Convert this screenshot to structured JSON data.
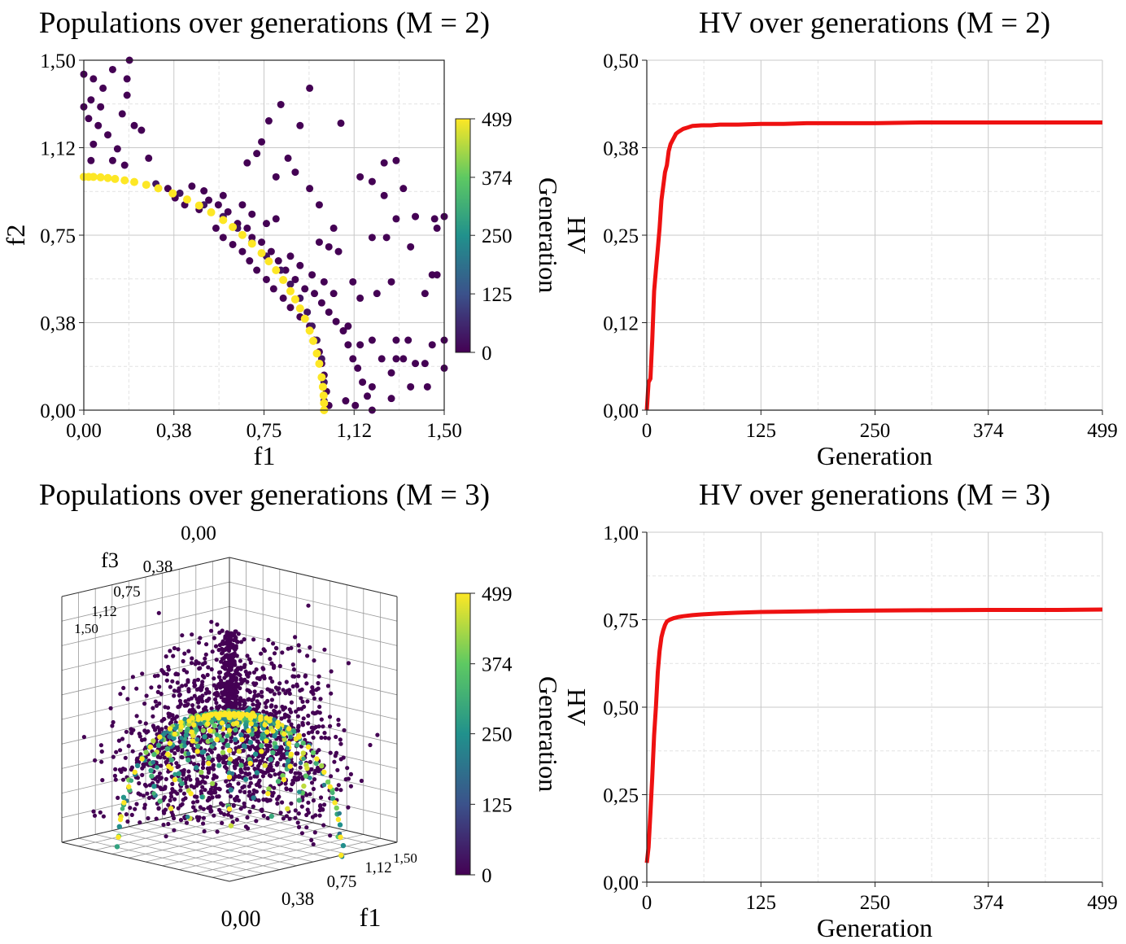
{
  "colormap": {
    "name": "viridis",
    "stops": [
      "#440154",
      "#3b528b",
      "#21918c",
      "#5ec962",
      "#fde725"
    ]
  },
  "hv_line_color": "#ee1111",
  "chart_data": [
    {
      "id": "pop2",
      "type": "scatter",
      "title": "Populations over generations (M = 2)",
      "xlabel": "f1",
      "ylabel": "f2",
      "xlim": [
        0,
        1.5
      ],
      "ylim": [
        0,
        1.5
      ],
      "xticks": [
        0,
        0.375,
        0.75,
        1.125,
        1.5
      ],
      "yticks": [
        0,
        0.375,
        0.75,
        1.125,
        1.5
      ],
      "tick_labels": [
        "0,00",
        "0,38",
        "0,75",
        "1,12",
        "1,50"
      ],
      "grid": true,
      "colorbar": {
        "label": "Generation",
        "ticks": [
          0,
          125,
          250,
          374,
          499
        ],
        "range": [
          0,
          499
        ]
      },
      "series": [
        {
          "generation": 0,
          "points": [
            [
              0.0,
              1.44
            ],
            [
              0.04,
              1.42
            ],
            [
              0.03,
              1.33
            ],
            [
              0.08,
              1.38
            ],
            [
              0.12,
              1.46
            ],
            [
              0.19,
              1.5
            ],
            [
              0.18,
              1.42
            ],
            [
              0.18,
              1.35
            ],
            [
              0.02,
              1.25
            ],
            [
              0.06,
              1.22
            ],
            [
              0.1,
              1.18
            ],
            [
              0.14,
              1.12
            ],
            [
              0.04,
              1.14
            ],
            [
              0.0,
              1.3
            ],
            [
              0.07,
              1.3
            ],
            [
              0.16,
              1.27
            ],
            [
              0.21,
              1.22
            ],
            [
              0.17,
              1.05
            ],
            [
              0.12,
              1.07
            ],
            [
              0.03,
              1.07
            ],
            [
              0.24,
              1.2
            ],
            [
              0.27,
              1.08
            ],
            [
              0.35,
              0.95
            ],
            [
              0.38,
              0.91
            ],
            [
              0.42,
              0.88
            ],
            [
              0.48,
              0.86
            ],
            [
              0.55,
              0.78
            ],
            [
              0.58,
              0.74
            ],
            [
              0.62,
              0.71
            ],
            [
              0.66,
              0.68
            ],
            [
              0.69,
              0.64
            ],
            [
              0.72,
              0.6
            ],
            [
              0.76,
              0.56
            ],
            [
              0.79,
              0.52
            ],
            [
              0.83,
              0.48
            ],
            [
              0.86,
              0.44
            ],
            [
              0.9,
              0.4
            ],
            [
              0.94,
              0.36
            ],
            [
              0.96,
              0.3
            ],
            [
              0.98,
              0.25
            ],
            [
              0.99,
              0.2
            ],
            [
              1.0,
              0.15
            ],
            [
              1.01,
              0.08
            ],
            [
              1.02,
              0.02
            ],
            [
              0.52,
              0.9
            ],
            [
              0.56,
              0.88
            ],
            [
              0.6,
              0.85
            ],
            [
              0.64,
              0.8
            ],
            [
              0.68,
              0.78
            ],
            [
              0.7,
              0.74
            ],
            [
              0.74,
              0.72
            ],
            [
              0.78,
              0.68
            ],
            [
              0.81,
              0.64
            ],
            [
              0.84,
              0.6
            ],
            [
              0.88,
              0.56
            ],
            [
              0.92,
              0.52
            ],
            [
              0.96,
              0.5
            ],
            [
              0.99,
              0.46
            ],
            [
              1.02,
              0.42
            ],
            [
              1.05,
              0.38
            ],
            [
              1.08,
              0.34
            ],
            [
              1.1,
              0.28
            ],
            [
              1.12,
              0.22
            ],
            [
              1.14,
              0.18
            ],
            [
              1.16,
              0.12
            ],
            [
              1.18,
              0.06
            ],
            [
              1.09,
              0.04
            ],
            [
              1.13,
              0.02
            ],
            [
              1.2,
              0.0
            ],
            [
              0.68,
              1.06
            ],
            [
              0.72,
              1.1
            ],
            [
              0.74,
              1.15
            ],
            [
              0.77,
              1.24
            ],
            [
              0.82,
              1.31
            ],
            [
              0.9,
              1.22
            ],
            [
              0.94,
              1.38
            ],
            [
              0.85,
              1.08
            ],
            [
              0.8,
              1.0
            ],
            [
              0.88,
              1.02
            ],
            [
              0.94,
              0.95
            ],
            [
              0.98,
              0.88
            ],
            [
              1.04,
              0.78
            ],
            [
              1.06,
              0.68
            ],
            [
              1.02,
              0.7
            ],
            [
              0.98,
              0.72
            ],
            [
              1.07,
              1.23
            ],
            [
              1.15,
              1.0
            ],
            [
              1.2,
              0.98
            ],
            [
              1.25,
              1.06
            ],
            [
              1.3,
              1.07
            ],
            [
              1.33,
              0.95
            ],
            [
              1.3,
              0.82
            ],
            [
              1.25,
              0.92
            ],
            [
              1.2,
              0.74
            ],
            [
              1.26,
              0.74
            ],
            [
              1.36,
              0.7
            ],
            [
              1.38,
              0.83
            ],
            [
              1.46,
              0.82
            ],
            [
              1.47,
              0.78
            ],
            [
              1.5,
              0.83
            ],
            [
              1.45,
              0.58
            ],
            [
              1.42,
              0.5
            ],
            [
              1.47,
              0.58
            ],
            [
              1.28,
              0.55
            ],
            [
              1.22,
              0.5
            ],
            [
              1.15,
              0.48
            ],
            [
              1.12,
              0.55
            ],
            [
              1.2,
              0.3
            ],
            [
              1.24,
              0.22
            ],
            [
              1.28,
              0.16
            ],
            [
              1.3,
              0.22
            ],
            [
              1.33,
              0.22
            ],
            [
              1.35,
              0.3
            ],
            [
              1.3,
              0.3
            ],
            [
              1.38,
              0.2
            ],
            [
              1.42,
              0.2
            ],
            [
              1.45,
              0.28
            ],
            [
              1.5,
              0.3
            ],
            [
              1.5,
              0.18
            ],
            [
              1.43,
              0.1
            ],
            [
              1.36,
              0.1
            ],
            [
              1.28,
              0.05
            ],
            [
              1.2,
              0.1
            ],
            [
              1.15,
              0.28
            ],
            [
              1.1,
              0.36
            ],
            [
              1.04,
              0.5
            ],
            [
              1.0,
              0.55
            ],
            [
              0.95,
              0.58
            ],
            [
              0.9,
              0.62
            ],
            [
              0.86,
              0.66
            ],
            [
              0.8,
              0.82
            ],
            [
              0.76,
              0.8
            ],
            [
              0.7,
              0.84
            ],
            [
              0.66,
              0.88
            ],
            [
              0.58,
              0.92
            ],
            [
              0.5,
              0.94
            ],
            [
              0.45,
              0.96
            ]
          ]
        },
        {
          "generation": 30,
          "points": [
            [
              0.3,
              0.97
            ],
            [
              0.4,
              0.93
            ],
            [
              0.5,
              0.88
            ],
            [
              0.58,
              0.83
            ],
            [
              0.64,
              0.78
            ],
            [
              0.7,
              0.72
            ],
            [
              0.76,
              0.66
            ],
            [
              0.82,
              0.6
            ],
            [
              0.86,
              0.54
            ],
            [
              0.9,
              0.48
            ],
            [
              0.93,
              0.42
            ],
            [
              0.95,
              0.36
            ],
            [
              0.97,
              0.3
            ],
            [
              0.99,
              0.22
            ],
            [
              1.0,
              0.12
            ],
            [
              1.0,
              0.04
            ]
          ]
        },
        {
          "generation": 499,
          "points": [
            [
              0.0,
              1.0
            ],
            [
              0.02,
              1.0
            ],
            [
              0.04,
              1.0
            ],
            [
              0.07,
              0.998
            ],
            [
              0.1,
              0.995
            ],
            [
              0.13,
              0.991
            ],
            [
              0.17,
              0.985
            ],
            [
              0.21,
              0.978
            ],
            [
              0.26,
              0.966
            ],
            [
              0.31,
              0.951
            ],
            [
              0.37,
              0.929
            ],
            [
              0.43,
              0.903
            ],
            [
              0.48,
              0.877
            ],
            [
              0.53,
              0.848
            ],
            [
              0.58,
              0.815
            ],
            [
              0.62,
              0.785
            ],
            [
              0.66,
              0.751
            ],
            [
              0.7,
              0.714
            ],
            [
              0.74,
              0.673
            ],
            [
              0.77,
              0.638
            ],
            [
              0.8,
              0.6
            ],
            [
              0.83,
              0.558
            ],
            [
              0.86,
              0.51
            ],
            [
              0.88,
              0.475
            ],
            [
              0.9,
              0.436
            ],
            [
              0.92,
              0.392
            ],
            [
              0.94,
              0.341
            ],
            [
              0.955,
              0.297
            ],
            [
              0.97,
              0.243
            ],
            [
              0.98,
              0.199
            ],
            [
              0.99,
              0.141
            ],
            [
              0.995,
              0.1
            ],
            [
              0.998,
              0.063
            ],
            [
              1.0,
              0.03
            ],
            [
              1.0,
              0.0
            ]
          ]
        }
      ]
    },
    {
      "id": "hv2",
      "type": "line",
      "title": "HV over generations (M = 2)",
      "xlabel": "Generation",
      "ylabel": "HV",
      "xlim": [
        0,
        499
      ],
      "ylim": [
        0,
        0.5
      ],
      "xticks": [
        0,
        125,
        250,
        374,
        499
      ],
      "xtick_labels": [
        "0",
        "125",
        "250",
        "374",
        "499"
      ],
      "yticks": [
        0,
        0.125,
        0.25,
        0.375,
        0.5
      ],
      "ytick_labels": [
        "0,00",
        "0,12",
        "0,25",
        "0,38",
        "0,50"
      ],
      "grid": true,
      "x": [
        0,
        2,
        4,
        6,
        8,
        10,
        12,
        14,
        16,
        18,
        20,
        22,
        24,
        26,
        28,
        30,
        32,
        35,
        40,
        45,
        50,
        60,
        70,
        80,
        100,
        125,
        150,
        175,
        200,
        250,
        300,
        374,
        450,
        499
      ],
      "values": [
        0.0,
        0.04,
        0.045,
        0.1,
        0.17,
        0.2,
        0.23,
        0.26,
        0.3,
        0.32,
        0.34,
        0.35,
        0.37,
        0.38,
        0.385,
        0.39,
        0.395,
        0.398,
        0.402,
        0.404,
        0.406,
        0.407,
        0.407,
        0.408,
        0.408,
        0.409,
        0.409,
        0.41,
        0.41,
        0.41,
        0.411,
        0.411,
        0.411,
        0.411
      ]
    },
    {
      "id": "pop3",
      "type": "scatter",
      "title": "Populations over generations (M = 3)",
      "xlabel": "f1",
      "zlabel": "f3",
      "f3_tick_labels": [
        "0,00",
        "0,38",
        "0,75",
        "1,12",
        "1,50"
      ],
      "f1_tick_labels": [
        "0,00",
        "0,38",
        "0,75",
        "1,12",
        "1,50"
      ],
      "colorbar": {
        "label": "Generation",
        "ticks": [
          0,
          125,
          250,
          374,
          499
        ],
        "range": [
          0,
          499
        ]
      },
      "projection": "3d"
    },
    {
      "id": "hv3",
      "type": "line",
      "title": "HV over generations (M = 3)",
      "xlabel": "Generation",
      "ylabel": "HV",
      "xlim": [
        0,
        499
      ],
      "ylim": [
        0,
        1.0
      ],
      "xticks": [
        0,
        125,
        250,
        374,
        499
      ],
      "xtick_labels": [
        "0",
        "125",
        "250",
        "374",
        "499"
      ],
      "yticks": [
        0,
        0.25,
        0.5,
        0.75,
        1.0
      ],
      "ytick_labels": [
        "0,00",
        "0,25",
        "0,50",
        "0,75",
        "1,00"
      ],
      "grid": true,
      "x": [
        0,
        2,
        4,
        6,
        8,
        10,
        12,
        14,
        16,
        18,
        20,
        22,
        25,
        30,
        35,
        40,
        50,
        60,
        80,
        100,
        125,
        150,
        200,
        250,
        300,
        374,
        450,
        499
      ],
      "values": [
        0.055,
        0.1,
        0.2,
        0.3,
        0.42,
        0.5,
        0.6,
        0.66,
        0.7,
        0.72,
        0.735,
        0.745,
        0.75,
        0.755,
        0.758,
        0.76,
        0.763,
        0.765,
        0.768,
        0.77,
        0.772,
        0.773,
        0.775,
        0.776,
        0.777,
        0.778,
        0.778,
        0.779
      ]
    }
  ]
}
